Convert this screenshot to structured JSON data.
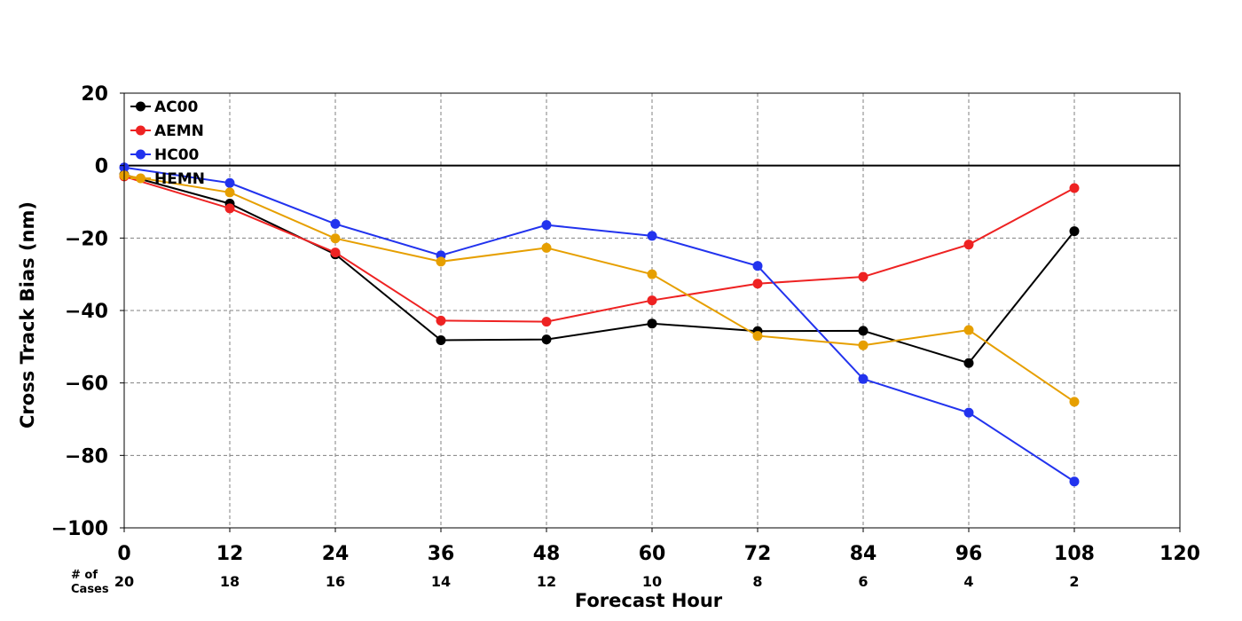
{
  "chart_data": {
    "type": "line",
    "title": "",
    "xlabel": "Forecast Hour",
    "ylabel": "Cross Track Bias (nm)",
    "xlim": [
      0,
      120
    ],
    "ylim": [
      -100,
      20
    ],
    "x_ticks": [
      "0",
      "12",
      "24",
      "36",
      "48",
      "60",
      "72",
      "84",
      "96",
      "108",
      "120"
    ],
    "y_ticks": [
      "20",
      "0",
      "−20",
      "−40",
      "−60",
      "−80",
      "−100"
    ],
    "grid": true,
    "zero_line": true,
    "legend_position": "top-left",
    "cases": {
      "label_line1": "# of",
      "label_line2": "Cases",
      "values": [
        "20",
        "18",
        "16",
        "14",
        "12",
        "10",
        "8",
        "6",
        "4",
        "2"
      ]
    },
    "x": [
      0,
      12,
      24,
      36,
      48,
      60,
      72,
      84,
      96,
      108
    ],
    "series": [
      {
        "name": "AC00",
        "color": "#000000",
        "values": [
          -2.5,
          -10.5,
          -24.5,
          -48.2,
          -48.0,
          -43.6,
          -45.7,
          -45.6,
          -54.5,
          -18.1
        ]
      },
      {
        "name": "AEMN",
        "color": "#ee2222",
        "values": [
          -3.0,
          -11.8,
          -24.0,
          -42.8,
          -43.1,
          -37.2,
          -32.6,
          -30.7,
          -21.8,
          -6.2
        ]
      },
      {
        "name": "HC00",
        "color": "#2233ee",
        "values": [
          -0.5,
          -4.8,
          -16.1,
          -24.8,
          -16.4,
          -19.4,
          -27.7,
          -58.9,
          -68.2,
          -87.2
        ]
      },
      {
        "name": "HEMN",
        "color": "#e69f00",
        "values": [
          -2.7,
          -7.4,
          -20.1,
          -26.5,
          -22.7,
          -30.0,
          -47.0,
          -49.6,
          -45.4,
          -65.2
        ]
      }
    ]
  }
}
